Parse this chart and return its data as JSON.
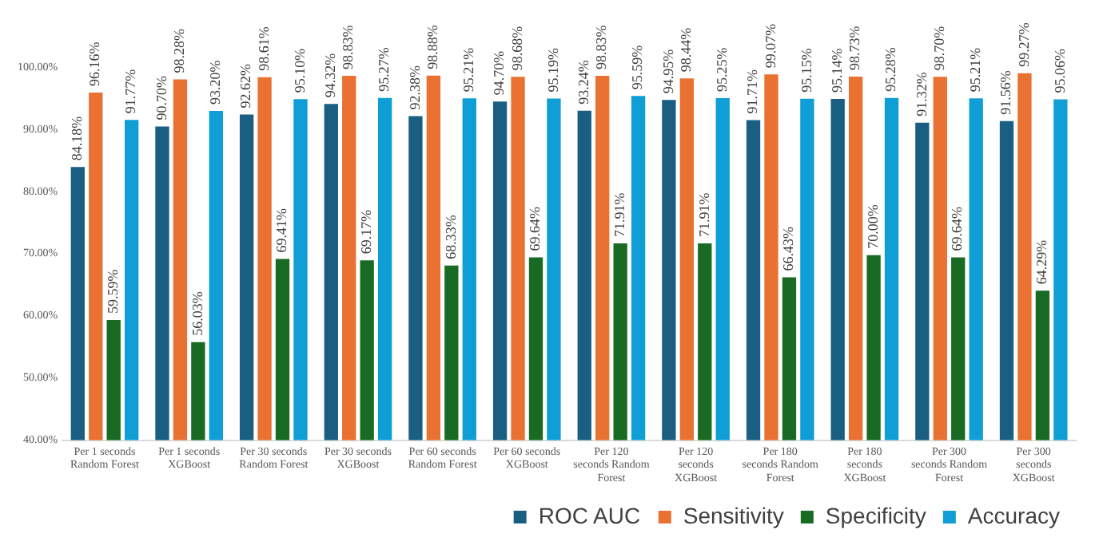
{
  "chart_data": {
    "type": "bar",
    "categories": [
      "Per 1 seconds Random Forest",
      "Per 1 seconds XGBoost",
      "Per 30 seconds Random Forest",
      "Per 30 seconds XGBoost",
      "Per 60 seconds Random Forest",
      "Per 60 seconds XGBoost",
      "Per 120 seconds Random Forest",
      "Per 120 seconds XGBoost",
      "Per 180 seconds Random Forest",
      "Per 180 seconds XGBoost",
      "Per 300 seconds Random Forest",
      "Per 300 seconds XGBoost"
    ],
    "series": [
      {
        "name": "ROC AUC",
        "color": "#1a5e82",
        "values": [
          84.18,
          90.7,
          92.62,
          94.32,
          92.38,
          94.7,
          93.24,
          94.95,
          91.71,
          95.14,
          91.32,
          91.56
        ],
        "value_labels": [
          "84.18%",
          "90.70%",
          "92.62%",
          "94.32%",
          "92.38%",
          "94.70%",
          "93.24%",
          "94.95%",
          "91.71%",
          "95.14%",
          "91.32%",
          "91.56%"
        ]
      },
      {
        "name": "Sensitivity",
        "color": "#e97132",
        "values": [
          96.16,
          98.28,
          98.61,
          98.83,
          98.88,
          98.68,
          98.83,
          98.44,
          99.07,
          98.73,
          98.7,
          99.27
        ],
        "value_labels": [
          "96.16%",
          "98.28%",
          "98.61%",
          "98.83%",
          "98.88%",
          "98.68%",
          "98.83%",
          "98.44%",
          "99.07%",
          "98.73%",
          "98.70%",
          "99.27%"
        ]
      },
      {
        "name": "Specificity",
        "color": "#196b24",
        "values": [
          59.59,
          56.03,
          69.41,
          69.17,
          68.33,
          69.64,
          71.91,
          71.91,
          66.43,
          70.0,
          69.64,
          64.29
        ],
        "value_labels": [
          "59.59%",
          "56.03%",
          "69.41%",
          "69.17%",
          "68.33%",
          "69.64%",
          "71.91%",
          "71.91%",
          "66.43%",
          "70.00%",
          "69.64%",
          "64.29%"
        ]
      },
      {
        "name": "Accuracy",
        "color": "#0f9ed5",
        "values": [
          91.77,
          93.2,
          95.1,
          95.27,
          95.21,
          95.19,
          95.59,
          95.25,
          95.15,
          95.28,
          95.21,
          95.06
        ],
        "value_labels": [
          "91.77%",
          "93.20%",
          "95.10%",
          "95.27%",
          "95.21%",
          "95.19%",
          "95.59%",
          "95.25%",
          "95.15%",
          "95.28%",
          "95.21%",
          "95.06%"
        ]
      }
    ],
    "ylim": [
      40,
      100
    ],
    "yticks": [
      {
        "value": 40,
        "label": "40.00%"
      },
      {
        "value": 50,
        "label": "50.00%"
      },
      {
        "value": 60,
        "label": "60.00%"
      },
      {
        "value": 70,
        "label": "70.00%"
      },
      {
        "value": 80,
        "label": "80.00%"
      },
      {
        "value": 90,
        "label": "90.00%"
      },
      {
        "value": 100,
        "label": "100.00%"
      }
    ],
    "grid": false,
    "legend": "bottom"
  }
}
